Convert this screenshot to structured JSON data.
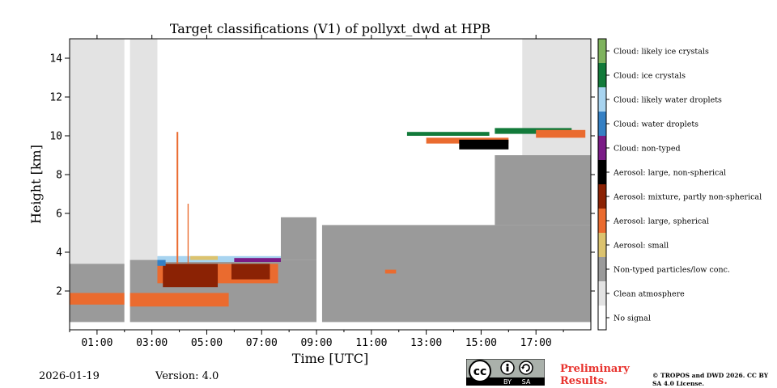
{
  "chart_data": {
    "type": "heatmap",
    "title": "Target classifications (V1) of pollyxt_dwd at HPB",
    "xlabel": "Time [UTC]",
    "ylabel": "Height [km]",
    "xlim": [
      0,
      19
    ],
    "ylim": [
      0,
      15
    ],
    "x_ticks": [
      {
        "value": 1,
        "label": "01:00"
      },
      {
        "value": 3,
        "label": "03:00"
      },
      {
        "value": 5,
        "label": "05:00"
      },
      {
        "value": 7,
        "label": "07:00"
      },
      {
        "value": 9,
        "label": "09:00"
      },
      {
        "value": 11,
        "label": "11:00"
      },
      {
        "value": 13,
        "label": "13:00"
      },
      {
        "value": 15,
        "label": "15:00"
      },
      {
        "value": 17,
        "label": "17:00"
      }
    ],
    "y_ticks": [
      {
        "value": 2,
        "label": "2"
      },
      {
        "value": 4,
        "label": "4"
      },
      {
        "value": 6,
        "label": "6"
      },
      {
        "value": 8,
        "label": "8"
      },
      {
        "value": 10,
        "label": "10"
      },
      {
        "value": 12,
        "label": "12"
      },
      {
        "value": 14,
        "label": "14"
      }
    ],
    "classes": [
      {
        "label": "No signal",
        "color": "#ffffff"
      },
      {
        "label": "Clean atmosphere",
        "color": "#e3e3e3"
      },
      {
        "label": "Non-typed particles/low conc.",
        "color": "#9a9a9a"
      },
      {
        "label": "Aerosol: small",
        "color": "#dcc36f"
      },
      {
        "label": "Aerosol: large, spherical",
        "color": "#ea6b2f"
      },
      {
        "label": "Aerosol: mixture, partly non-spherical",
        "color": "#8b2204"
      },
      {
        "label": "Aerosol: large, non-spherical",
        "color": "#000000"
      },
      {
        "label": "Cloud: non-typed",
        "color": "#7a1b86"
      },
      {
        "label": "Cloud: water droplets",
        "color": "#3580c4"
      },
      {
        "label": "Cloud: likely water droplets",
        "color": "#a8d4f0"
      },
      {
        "label": "Cloud: ice crystals",
        "color": "#127a3a"
      },
      {
        "label": "Cloud: likely ice crystals",
        "color": "#7fb35e"
      }
    ],
    "regions": [
      {
        "class": 1,
        "t": [
          0,
          2.0
        ],
        "h": [
          3.3,
          15
        ]
      },
      {
        "class": 1,
        "t": [
          2.2,
          3.2
        ],
        "h": [
          3.5,
          15
        ]
      },
      {
        "class": 2,
        "t": [
          0,
          2.0
        ],
        "h": [
          0.4,
          3.4
        ]
      },
      {
        "class": 2,
        "t": [
          2.2,
          9.0
        ],
        "h": [
          0.4,
          3.6
        ]
      },
      {
        "class": 2,
        "t": [
          9.2,
          19
        ],
        "h": [
          0.4,
          4.0
        ]
      },
      {
        "class": 2,
        "t": [
          7.7,
          9.0
        ],
        "h": [
          3.6,
          5.8
        ]
      },
      {
        "class": 2,
        "t": [
          9.2,
          19
        ],
        "h": [
          4.0,
          5.4
        ]
      },
      {
        "class": 2,
        "t": [
          15.5,
          19
        ],
        "h": [
          5.4,
          9.0
        ]
      },
      {
        "class": 1,
        "t": [
          16.5,
          19
        ],
        "h": [
          9.0,
          15
        ]
      },
      {
        "class": 4,
        "t": [
          0,
          2.0
        ],
        "h": [
          1.3,
          1.9
        ]
      },
      {
        "class": 4,
        "t": [
          2.2,
          5.8
        ],
        "h": [
          1.2,
          1.9
        ]
      },
      {
        "class": 4,
        "t": [
          3.2,
          7.6
        ],
        "h": [
          2.4,
          3.4
        ]
      },
      {
        "class": 5,
        "t": [
          3.4,
          5.4
        ],
        "h": [
          2.2,
          3.4
        ]
      },
      {
        "class": 5,
        "t": [
          5.9,
          7.3
        ],
        "h": [
          2.6,
          3.4
        ]
      },
      {
        "class": 9,
        "t": [
          3.2,
          7.7
        ],
        "h": [
          3.5,
          3.8
        ]
      },
      {
        "class": 8,
        "t": [
          3.2,
          3.5
        ],
        "h": [
          3.3,
          3.6
        ]
      },
      {
        "class": 7,
        "t": [
          6.0,
          7.7
        ],
        "h": [
          3.5,
          3.7
        ]
      },
      {
        "class": 3,
        "t": [
          4.4,
          5.4
        ],
        "h": [
          3.6,
          3.8
        ]
      },
      {
        "class": 4,
        "t": [
          3.9,
          3.96
        ],
        "h": [
          3.4,
          10.2
        ]
      },
      {
        "class": 4,
        "t": [
          4.3,
          4.34
        ],
        "h": [
          3.4,
          6.5
        ]
      },
      {
        "class": 4,
        "t": [
          11.5,
          11.9
        ],
        "h": [
          2.9,
          3.1
        ]
      },
      {
        "class": 10,
        "t": [
          12.3,
          15.3
        ],
        "h": [
          10.0,
          10.2
        ]
      },
      {
        "class": 4,
        "t": [
          13.0,
          16.0
        ],
        "h": [
          9.6,
          9.9
        ]
      },
      {
        "class": 6,
        "t": [
          14.2,
          16.0
        ],
        "h": [
          9.3,
          9.8
        ]
      },
      {
        "class": 10,
        "t": [
          15.5,
          18.3
        ],
        "h": [
          10.1,
          10.4
        ]
      },
      {
        "class": 4,
        "t": [
          17.0,
          18.8
        ],
        "h": [
          9.9,
          10.3
        ]
      },
      {
        "class": 0,
        "t": [
          2.0,
          2.2
        ],
        "h": [
          0.4,
          15
        ]
      },
      {
        "class": 0,
        "t": [
          9.0,
          9.2
        ],
        "h": [
          0.4,
          15
        ]
      }
    ]
  },
  "footer": {
    "date": "2026-01-19",
    "version": "Version: 4.0",
    "preliminary": "Preliminary Results.",
    "copyright": "© TROPOS and DWD 2026. CC BY SA 4.0 License.",
    "cc_badge": {
      "cc": "cc",
      "by": "BY",
      "sa": "SA"
    }
  }
}
